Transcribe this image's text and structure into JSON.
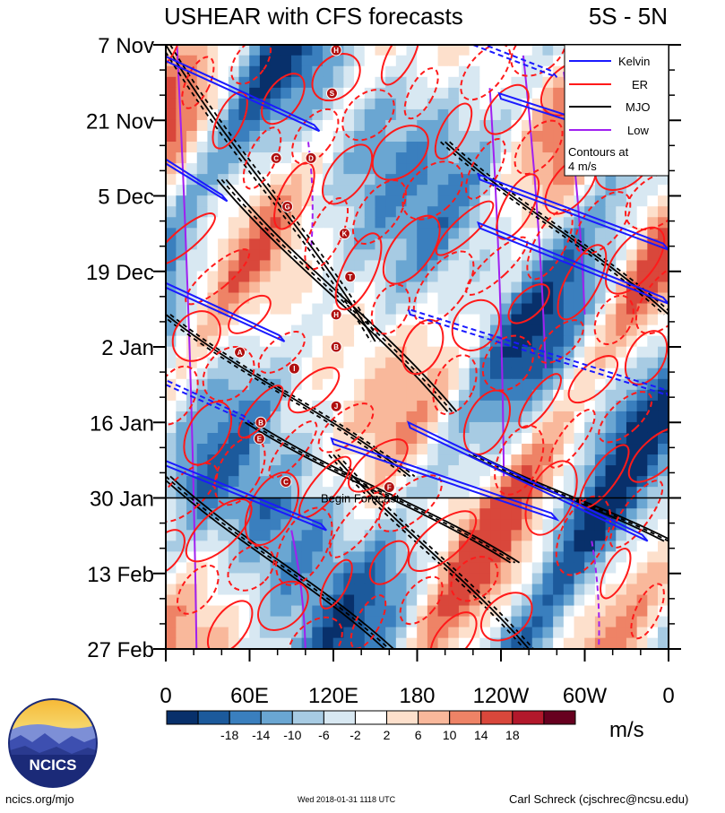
{
  "chart_data": {
    "type": "heatmap",
    "title": "USHEAR with CFS forecasts",
    "region": "5S - 5N",
    "x_ticks": [
      "0",
      "60E",
      "120E",
      "180",
      "120W",
      "60W",
      "0"
    ],
    "x_range_degrees_east": [
      0,
      360
    ],
    "y_ticks": [
      "7 Nov",
      "21 Nov",
      "5 Dec",
      "19 Dec",
      "2 Jan",
      "16 Jan",
      "30 Jan",
      "13 Feb",
      "27 Feb"
    ],
    "y_range_days_from_7_Nov": [
      0,
      112
    ],
    "forecast_start_day": 84,
    "annotation": "Begin Forecast",
    "legend": {
      "placement": "top-right",
      "entries": [
        {
          "label": "Kelvin",
          "color": "#1a1aff"
        },
        {
          "label": "ER",
          "color": "#ff1a1a"
        },
        {
          "label": "MJO",
          "color": "#000000"
        },
        {
          "label": "Low",
          "color": "#a020f0"
        }
      ],
      "note": "Contours at 4 m/s"
    },
    "colorbar": {
      "labels": [
        "-18",
        "-14",
        "-10",
        "-6",
        "-2",
        "2",
        "6",
        "10",
        "14",
        "18"
      ],
      "colors": [
        "#08306b",
        "#1c5a9c",
        "#3a7fbe",
        "#6aa6d2",
        "#a7cbe3",
        "#d8e8f2",
        "#ffffff",
        "#fde0cc",
        "#f9b89b",
        "#ee8366",
        "#d9473b",
        "#b2182b",
        "#67001f"
      ],
      "units": "m/s"
    },
    "cyclones": [
      {
        "letter": "H",
        "lon": 122,
        "day": 1
      },
      {
        "letter": "S",
        "lon": 119,
        "day": 9
      },
      {
        "letter": "C",
        "lon": 79,
        "day": 21
      },
      {
        "letter": "D",
        "lon": 104,
        "day": 21
      },
      {
        "letter": "G",
        "lon": 87,
        "day": 30
      },
      {
        "letter": "K",
        "lon": 128,
        "day": 35
      },
      {
        "letter": "T",
        "lon": 132,
        "day": 43
      },
      {
        "letter": "H",
        "lon": 122,
        "day": 50
      },
      {
        "letter": "B",
        "lon": 122,
        "day": 56
      },
      {
        "letter": "A",
        "lon": 53,
        "day": 57
      },
      {
        "letter": "I",
        "lon": 92,
        "day": 60
      },
      {
        "letter": "J",
        "lon": 122,
        "day": 67
      },
      {
        "letter": "B",
        "lon": 68,
        "day": 70
      },
      {
        "letter": "E",
        "lon": 67,
        "day": 73
      },
      {
        "letter": "C",
        "lon": 86,
        "day": 81
      },
      {
        "letter": "F",
        "lon": 160,
        "day": 82
      }
    ],
    "kelvin_tracks": [
      {
        "lon0": 0,
        "day0": 3,
        "lon1": 110,
        "day1": 16
      },
      {
        "lon0": 0,
        "day0": 22,
        "lon1": 44,
        "day1": 29
      },
      {
        "lon0": 0,
        "day0": 45,
        "lon1": 85,
        "day1": 55
      },
      {
        "lon0": 0,
        "day0": 63,
        "lon1": 60,
        "day1": 70
      },
      {
        "lon0": 120,
        "day0": 74,
        "lon1": 280,
        "day1": 88
      },
      {
        "lon0": 0,
        "day0": 78,
        "lon1": 115,
        "day1": 90
      },
      {
        "lon0": 175,
        "day0": 71,
        "lon1": 345,
        "day1": 92
      },
      {
        "lon0": 175,
        "day0": 50,
        "lon1": 360,
        "day1": 65
      },
      {
        "lon0": 225,
        "day0": 25,
        "lon1": 360,
        "day1": 38
      },
      {
        "lon0": 225,
        "day0": 34,
        "lon1": 360,
        "day1": 48
      },
      {
        "lon0": 240,
        "day0": 10,
        "lon1": 360,
        "day1": 20
      },
      {
        "lon0": 220,
        "day0": 0,
        "lon1": 280,
        "day1": 6
      }
    ],
    "mjo_tracks": [
      {
        "lon0": 0,
        "day0": 0,
        "lon1": 150,
        "day1": 55
      },
      {
        "lon0": 40,
        "day0": 25,
        "lon1": 205,
        "day1": 68
      },
      {
        "lon0": 0,
        "day0": 50,
        "lon1": 175,
        "day1": 80
      },
      {
        "lon0": 60,
        "day0": 70,
        "lon1": 250,
        "day1": 96
      },
      {
        "lon0": 120,
        "day0": 76,
        "lon1": 260,
        "day1": 112
      },
      {
        "lon0": 0,
        "day0": 80,
        "lon1": 160,
        "day1": 112
      },
      {
        "lon0": 200,
        "day0": 18,
        "lon1": 360,
        "day1": 50
      },
      {
        "lon0": 220,
        "day0": 76,
        "lon1": 360,
        "day1": 92
      }
    ],
    "low_lines": [
      {
        "lon0": 8,
        "day0": 0,
        "lon1": 22,
        "day1": 112
      },
      {
        "lon0": 102,
        "day0": 18,
        "lon1": 104,
        "day1": 38
      },
      {
        "lon0": 256,
        "day0": 2,
        "lon1": 272,
        "day1": 60
      },
      {
        "lon0": 285,
        "day0": 5,
        "lon1": 300,
        "day1": 50
      },
      {
        "lon0": 305,
        "day0": 92,
        "lon1": 310,
        "day1": 112
      },
      {
        "lon0": 232,
        "day0": 8,
        "lon1": 242,
        "day1": 80
      },
      {
        "lon0": 90,
        "day0": 90,
        "lon1": 100,
        "day1": 112
      }
    ]
  },
  "footer": {
    "left": "ncics.org/mjo",
    "center": "Wed 2018-01-31 1118 UTC",
    "right": "Carl Schreck (cjschrec@ncsu.edu)"
  },
  "logo": {
    "text": "NCICS"
  }
}
